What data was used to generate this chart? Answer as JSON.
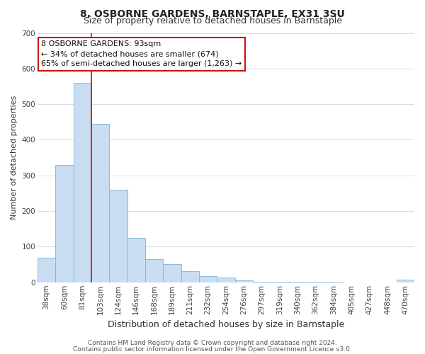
{
  "title": "8, OSBORNE GARDENS, BARNSTAPLE, EX31 3SU",
  "subtitle": "Size of property relative to detached houses in Barnstaple",
  "xlabel": "Distribution of detached houses by size in Barnstaple",
  "ylabel": "Number of detached properties",
  "bar_labels": [
    "38sqm",
    "60sqm",
    "81sqm",
    "103sqm",
    "124sqm",
    "146sqm",
    "168sqm",
    "189sqm",
    "211sqm",
    "232sqm",
    "254sqm",
    "276sqm",
    "297sqm",
    "319sqm",
    "340sqm",
    "362sqm",
    "384sqm",
    "405sqm",
    "427sqm",
    "448sqm",
    "470sqm"
  ],
  "bar_heights": [
    70,
    330,
    560,
    445,
    260,
    125,
    65,
    52,
    32,
    17,
    13,
    5,
    2,
    2,
    1,
    1,
    1,
    0,
    0,
    0,
    7
  ],
  "bar_color": "#c9ddf2",
  "bar_edge_color": "#7ab4d8",
  "vline_color": "#cc1111",
  "annotation_line1": "8 OSBORNE GARDENS: 93sqm",
  "annotation_line2": "← 34% of detached houses are smaller (674)",
  "annotation_line3": "65% of semi-detached houses are larger (1,263) →",
  "annotation_box_facecolor": "#ffffff",
  "annotation_box_edgecolor": "#cc1111",
  "ylim": [
    0,
    700
  ],
  "yticks": [
    0,
    100,
    200,
    300,
    400,
    500,
    600,
    700
  ],
  "footer1": "Contains HM Land Registry data © Crown copyright and database right 2024.",
  "footer2": "Contains public sector information licensed under the Open Government Licence v3.0.",
  "background_color": "#ffffff",
  "grid_color": "#d0dcea",
  "title_fontsize": 10,
  "subtitle_fontsize": 9,
  "xlabel_fontsize": 9,
  "ylabel_fontsize": 8,
  "tick_fontsize": 7.5,
  "annotation_fontsize": 8,
  "footer_fontsize": 6.5
}
